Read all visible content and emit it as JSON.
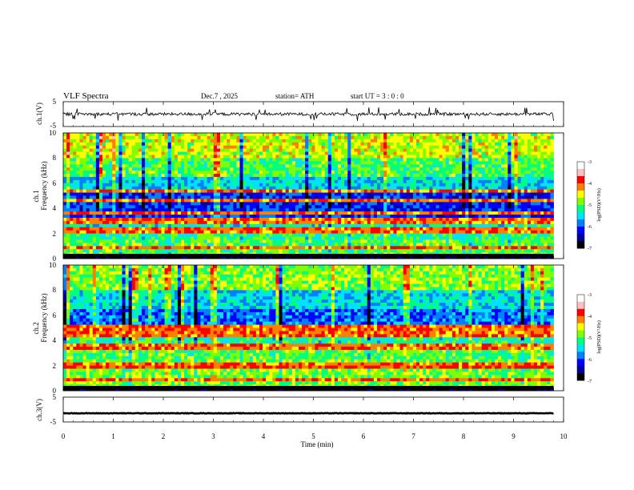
{
  "header": {
    "title": "VLF  Spectra",
    "date": "Dec.7  , 2025",
    "station": "station= ATH",
    "start": "start  UT  =    3  : 0   : 0"
  },
  "colorbar_ticks": [
    "-3",
    "-4",
    "-5",
    "-6",
    "-7"
  ],
  "colorbar_label": "log(PSD)(V²/Hz)",
  "colormap": [
    "#000000",
    "#0000a0",
    "#0000ff",
    "#0080ff",
    "#00e0ff",
    "#00ff80",
    "#80ff00",
    "#ffff00",
    "#ff8000",
    "#ff0000",
    "#ffc0c0",
    "#ffffff"
  ],
  "chart_data": [
    {
      "type": "line",
      "panel": "ch1-waveform",
      "ylabel": "ch.1(V)",
      "ylim": [
        -5,
        5
      ],
      "yticks": [
        "5",
        "-5"
      ],
      "xlim": [
        0,
        10
      ],
      "series": [
        {
          "baseline": 0,
          "typical_amplitude": 0.6,
          "color": "#000000"
        }
      ]
    },
    {
      "type": "heatmap",
      "panel": "ch1-spectrogram",
      "ylabel": [
        "ch.1",
        "Frequency  (kHz)"
      ],
      "ylim": [
        0,
        10
      ],
      "yticks": [
        "0",
        "2",
        "4",
        "6",
        "8",
        "10"
      ],
      "xlim": [
        0,
        9.8
      ],
      "zlim": [
        -7,
        -3
      ],
      "bands": [
        {
          "fmin": 0.0,
          "fmax": 0.25,
          "z": -7.0
        },
        {
          "fmin": 0.25,
          "fmax": 1.6,
          "z": -5.0
        },
        {
          "fmin": 1.6,
          "fmax": 2.4,
          "z": -5.2
        },
        {
          "fmin": 2.4,
          "fmax": 3.0,
          "z": -5.4
        },
        {
          "fmin": 3.0,
          "fmax": 5.2,
          "z": -6.2
        },
        {
          "fmin": 5.2,
          "fmax": 6.5,
          "z": -5.6
        },
        {
          "fmin": 6.5,
          "fmax": 8.0,
          "z": -5.0
        },
        {
          "fmin": 8.0,
          "fmax": 10.0,
          "z": -4.6
        }
      ],
      "lines_khz": [
        0.8,
        2.1,
        2.3,
        3.0,
        3.6,
        4.6,
        5.3
      ]
    },
    {
      "type": "heatmap",
      "panel": "ch2-spectrogram",
      "ylabel": [
        "ch.2",
        "Frequency  (kHz)"
      ],
      "ylim": [
        0,
        10
      ],
      "yticks": [
        "0",
        "2",
        "4",
        "6",
        "8",
        "10"
      ],
      "xlim": [
        0,
        9.8
      ],
      "zlim": [
        -7,
        -3
      ],
      "bands": [
        {
          "fmin": 0.0,
          "fmax": 0.25,
          "z": -7.0
        },
        {
          "fmin": 0.25,
          "fmax": 2.6,
          "z": -4.9
        },
        {
          "fmin": 2.6,
          "fmax": 3.6,
          "z": -5.0
        },
        {
          "fmin": 3.6,
          "fmax": 4.5,
          "z": -5.3
        },
        {
          "fmin": 4.5,
          "fmax": 5.3,
          "z": -5.1
        },
        {
          "fmin": 5.3,
          "fmax": 6.5,
          "z": -6.0
        },
        {
          "fmin": 6.5,
          "fmax": 8.0,
          "z": -5.5
        },
        {
          "fmin": 8.0,
          "fmax": 10.0,
          "z": -4.8
        }
      ],
      "lines_khz": [
        0.8,
        1.8,
        2.0,
        3.3,
        3.6,
        4.5,
        4.9,
        5.2
      ]
    },
    {
      "type": "line",
      "panel": "ch3-waveform",
      "ylabel": "ch.3(V)",
      "ylim": [
        -5,
        5
      ],
      "yticks": [
        "5",
        "-5"
      ],
      "xlim": [
        0,
        10
      ],
      "series": [
        {
          "baseline": -1.5,
          "typical_amplitude": 0.1,
          "color": "#000000"
        }
      ]
    }
  ],
  "xaxis": {
    "label": "Time  (min)",
    "ticks": [
      "0",
      "1",
      "2",
      "3",
      "4",
      "5",
      "6",
      "7",
      "8",
      "9",
      "10"
    ],
    "xlim": [
      0,
      10
    ]
  }
}
